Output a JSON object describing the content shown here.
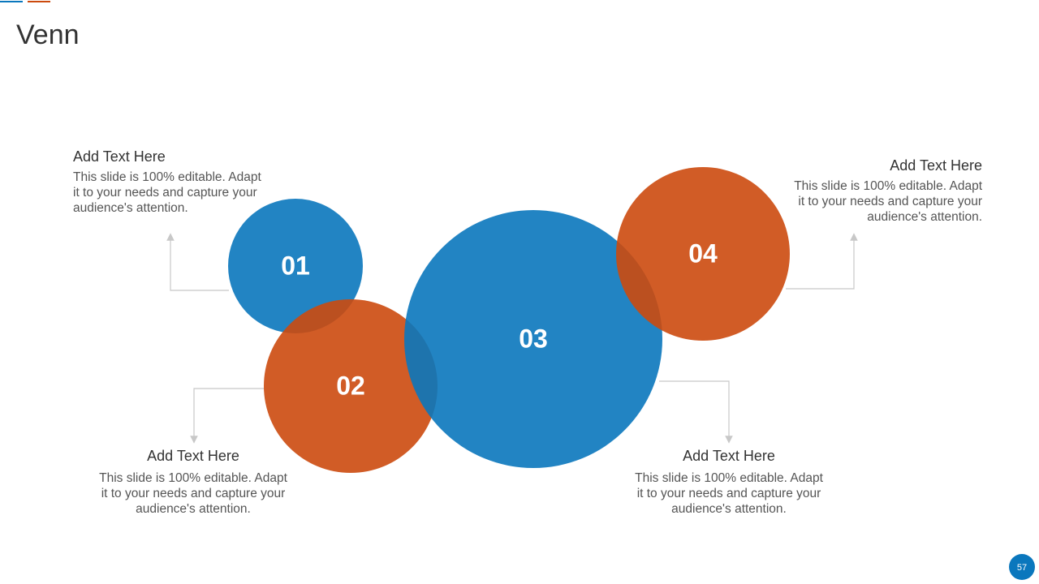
{
  "title": "Venn",
  "circles": [
    {
      "label": "01"
    },
    {
      "label": "02"
    },
    {
      "label": "03"
    },
    {
      "label": "04"
    }
  ],
  "notes": [
    {
      "heading": "Add Text Here",
      "body": [
        "This slide is 100% editable. Adapt",
        "it to your needs and capture your",
        "audience's attention."
      ]
    },
    {
      "heading": "Add Text Here",
      "body": [
        "This slide is 100% editable. Adapt",
        "it to your needs and capture your",
        "audience's attention."
      ]
    },
    {
      "heading": "Add Text Here",
      "body": [
        "This slide is 100% editable. Adapt",
        "it to your needs and capture your",
        "audience's attention."
      ]
    },
    {
      "heading": "Add Text Here",
      "body": [
        "This slide is 100% editable. Adapt",
        "it to your needs and capture your",
        "audience's attention."
      ]
    }
  ],
  "page_number": "57"
}
